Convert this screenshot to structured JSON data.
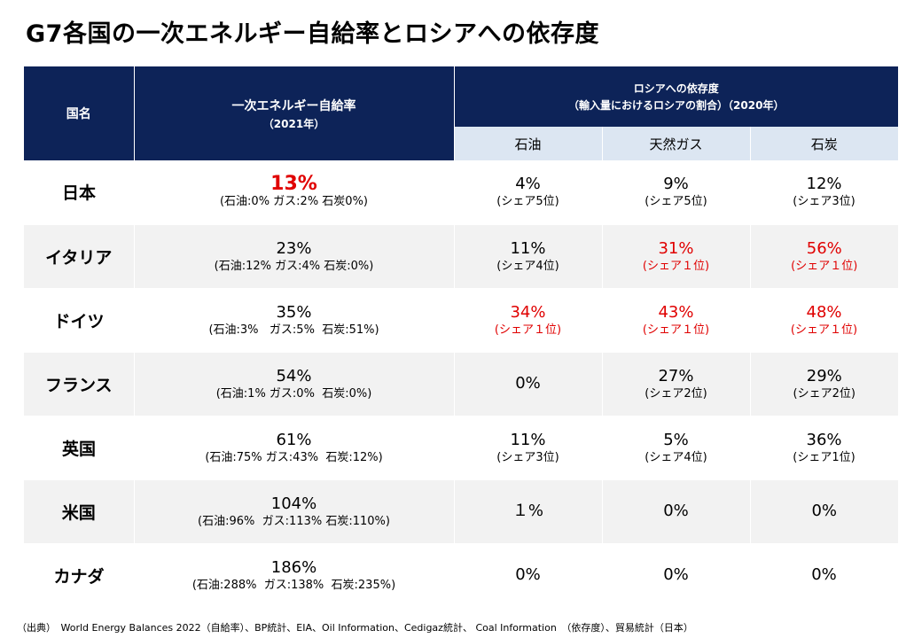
{
  "title": "G7各国の一次エネルギー自給率とロシアへの依存度",
  "header": {
    "country": "国名",
    "self_sufficiency": "一次エネルギー自給率",
    "self_sufficiency_year": "（2021年）",
    "dependency": "ロシアへの依存度",
    "dependency_note": "（輸入量におけるロシアの割合）（2020年）",
    "oil": "石油",
    "gas": "天然ガス",
    "coal": "石炭"
  },
  "rows": [
    {
      "country": "日本",
      "self": {
        "value": "13%",
        "detail": "(石油:0% ガス:2% 石炭0%)"
      },
      "oil": {
        "value": "4%",
        "rank": "(シェア5位)"
      },
      "gas": {
        "value": "9%",
        "rank": "(シェア5位)"
      },
      "coal": {
        "value": "12%",
        "rank": "(シェア3位)"
      }
    },
    {
      "country": "イタリア",
      "self": {
        "value": "23%",
        "detail": "(石油:12% ガス:4%  石炭:0%)"
      },
      "oil": {
        "value": "11%",
        "rank": "(シェア4位)"
      },
      "gas": {
        "value": "31%",
        "rank": "(シェア１位)"
      },
      "coal": {
        "value": "56%",
        "rank": "(シェア１位)"
      }
    },
    {
      "country": "ドイツ",
      "self": {
        "value": "35%",
        "detail": "(石油:3%   ガス:5%  石炭:51%)"
      },
      "oil": {
        "value": "34%",
        "rank": "(シェア１位)"
      },
      "gas": {
        "value": "43%",
        "rank": "(シェア１位)"
      },
      "coal": {
        "value": "48%",
        "rank": "(シェア１位)"
      }
    },
    {
      "country": "フランス",
      "self": {
        "value": "54%",
        "detail": "(石油:1% ガス:0%  石炭:0%)"
      },
      "oil": {
        "value": "0%",
        "rank": ""
      },
      "gas": {
        "value": "27%",
        "rank": "(シェア2位)"
      },
      "coal": {
        "value": "29%",
        "rank": "(シェア2位)"
      }
    },
    {
      "country": "英国",
      "self": {
        "value": "61%",
        "detail": "(石油:75% ガス:43%  石炭:12%)"
      },
      "oil": {
        "value": "11%",
        "rank": "(シェア3位)"
      },
      "gas": {
        "value": "5%",
        "rank": "(シェア4位)"
      },
      "coal": {
        "value": "36%",
        "rank": "(シェア1位)"
      }
    },
    {
      "country": "米国",
      "self": {
        "value": "104%",
        "detail": "(石油:96%  ガス:113% 石炭:110%)"
      },
      "oil": {
        "value": "１%",
        "rank": ""
      },
      "gas": {
        "value": "0%",
        "rank": ""
      },
      "coal": {
        "value": "0%",
        "rank": ""
      }
    },
    {
      "country": "カナダ",
      "self": {
        "value": "186%",
        "detail": "(石油:288%  ガス:138%  石炭:235%)"
      },
      "oil": {
        "value": "0%",
        "rank": ""
      },
      "gas": {
        "value": "0%",
        "rank": ""
      },
      "coal": {
        "value": "0%",
        "rank": ""
      }
    }
  ],
  "colors": {
    "header_bg": "#0d2358",
    "subheader_bg": "#dce6f2",
    "row_alt_bg": "#f2f2f2",
    "highlight": "#e00000"
  },
  "source": "（出典）　World Energy Balances 2022（自給率）、BP統計、EIA、Oil Information、Cedigaz統計、 Coal Information　（依存度）、貿易統計（日本）"
}
